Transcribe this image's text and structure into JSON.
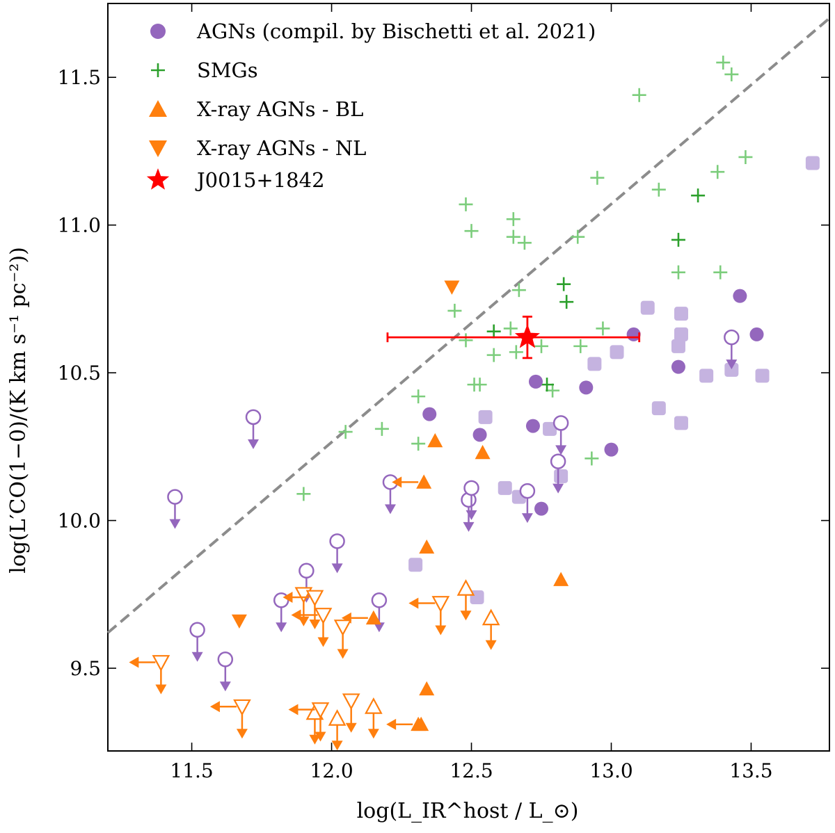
{
  "chart_data": {
    "type": "scatter",
    "xlabel": "log(L_IR^host / L_⊙)",
    "ylabel": "log(L′CO(1−0)/(K km s⁻¹ pc⁻²))",
    "xlim": [
      11.2,
      13.78
    ],
    "ylim": [
      9.22,
      11.75
    ],
    "xticks": [
      11.5,
      12.0,
      12.5,
      13.0,
      13.5
    ],
    "xtick_labels": [
      "11.5",
      "12.0",
      "12.5",
      "13.0",
      "13.5"
    ],
    "yticks": [
      9.5,
      10.0,
      10.5,
      11.0,
      11.5
    ],
    "ytick_labels": [
      "9.5",
      "10.0",
      "10.5",
      "11.0",
      "11.5"
    ],
    "legend_position": "top-left",
    "legend": [
      {
        "label": "AGNs (compil. by Bischetti et al. 2021)",
        "marker": "circle",
        "color": "#9467bd"
      },
      {
        "label": "SMGs",
        "marker": "plus",
        "color": "#2ca02c"
      },
      {
        "label": "X-ray AGNs - BL",
        "marker": "triangle-up",
        "color": "#ff7f0e"
      },
      {
        "label": "X-ray AGNs - NL",
        "marker": "triangle-down",
        "color": "#ff7f0e"
      },
      {
        "label": "J0015+1842",
        "marker": "star",
        "color": "#ff0000"
      }
    ],
    "colors": {
      "agn": "#9467bd",
      "agn_light": "#c5b3e0",
      "smg": "#2ca02c",
      "smg_light": "#7ccd7c",
      "xray": "#ff7f0e",
      "target": "#ff0000",
      "relation": "#8c8c8c"
    },
    "relation_line": {
      "x": [
        11.2,
        13.78
      ],
      "y": [
        9.62,
        11.7
      ],
      "style": "dashed"
    },
    "series": [
      {
        "name": "AGNs (compil. by Bischetti et al. 2021)",
        "marker": "circle",
        "detections": [
          [
            12.35,
            10.36
          ],
          [
            12.53,
            10.29
          ],
          [
            12.72,
            10.32
          ],
          [
            12.73,
            10.47
          ],
          [
            12.75,
            10.04
          ],
          [
            12.91,
            10.45
          ],
          [
            13.0,
            10.24
          ],
          [
            13.08,
            10.63
          ],
          [
            13.24,
            10.52
          ],
          [
            13.46,
            10.76
          ],
          [
            13.52,
            10.63
          ]
        ],
        "upper_limits": [
          [
            11.44,
            10.08
          ],
          [
            11.52,
            9.63
          ],
          [
            11.62,
            9.53
          ],
          [
            11.72,
            10.35
          ],
          [
            11.82,
            9.73
          ],
          [
            11.91,
            9.83
          ],
          [
            12.02,
            9.93
          ],
          [
            12.17,
            9.73
          ],
          [
            12.21,
            10.13
          ],
          [
            12.49,
            10.07
          ],
          [
            12.5,
            10.11
          ],
          [
            12.7,
            10.1
          ],
          [
            12.81,
            10.2
          ],
          [
            12.82,
            10.33
          ],
          [
            13.43,
            10.62
          ]
        ],
        "light_points": [
          [
            12.3,
            9.85
          ],
          [
            12.52,
            9.74
          ],
          [
            12.55,
            10.35
          ],
          [
            12.62,
            10.11
          ],
          [
            12.67,
            10.08
          ],
          [
            12.78,
            10.31
          ],
          [
            12.82,
            10.15
          ],
          [
            12.94,
            10.53
          ],
          [
            13.02,
            10.57
          ],
          [
            13.13,
            10.72
          ],
          [
            13.17,
            10.38
          ],
          [
            13.24,
            10.59
          ],
          [
            13.25,
            10.63
          ],
          [
            13.25,
            10.7
          ],
          [
            13.25,
            10.33
          ],
          [
            13.34,
            10.49
          ],
          [
            13.43,
            10.51
          ],
          [
            13.54,
            10.49
          ],
          [
            13.72,
            11.21
          ]
        ]
      },
      {
        "name": "SMGs",
        "marker": "plus",
        "points": [
          [
            12.58,
            10.64
          ],
          [
            12.77,
            10.46
          ],
          [
            12.83,
            10.8
          ],
          [
            12.84,
            10.74
          ],
          [
            13.24,
            10.95
          ],
          [
            13.31,
            11.1
          ]
        ],
        "light_points": [
          [
            11.9,
            10.09
          ],
          [
            12.05,
            10.3
          ],
          [
            12.18,
            10.31
          ],
          [
            12.31,
            10.42
          ],
          [
            12.31,
            10.26
          ],
          [
            12.44,
            10.71
          ],
          [
            12.48,
            11.07
          ],
          [
            12.48,
            10.61
          ],
          [
            12.5,
            10.98
          ],
          [
            12.51,
            10.46
          ],
          [
            12.53,
            10.46
          ],
          [
            12.58,
            10.56
          ],
          [
            12.64,
            10.65
          ],
          [
            12.65,
            11.02
          ],
          [
            12.65,
            10.96
          ],
          [
            12.66,
            10.57
          ],
          [
            12.67,
            10.78
          ],
          [
            12.69,
            10.94
          ],
          [
            12.75,
            10.59
          ],
          [
            12.79,
            10.44
          ],
          [
            12.88,
            10.96
          ],
          [
            12.89,
            10.59
          ],
          [
            12.93,
            10.21
          ],
          [
            12.95,
            11.16
          ],
          [
            12.97,
            10.65
          ],
          [
            13.1,
            11.44
          ],
          [
            13.17,
            11.12
          ],
          [
            13.24,
            10.84
          ],
          [
            13.38,
            11.18
          ],
          [
            13.39,
            10.84
          ],
          [
            13.4,
            11.55
          ],
          [
            13.43,
            11.51
          ],
          [
            13.48,
            11.23
          ]
        ]
      },
      {
        "name": "X-ray AGNs - BL",
        "marker": "triangle-up",
        "detections": [
          [
            12.32,
            9.31
          ],
          [
            12.34,
            9.43
          ],
          [
            12.34,
            9.91
          ],
          [
            12.37,
            10.27
          ],
          [
            12.54,
            10.23
          ],
          [
            12.82,
            9.8
          ]
        ],
        "upper_limits": [
          [
            11.94,
            9.35
          ],
          [
            12.02,
            9.33
          ],
          [
            12.15,
            9.37
          ],
          [
            12.48,
            9.77
          ],
          [
            12.57,
            9.67
          ]
        ],
        "left_limits": [
          [
            12.33,
            10.13
          ],
          [
            12.31,
            9.31
          ],
          [
            12.15,
            9.67
          ]
        ]
      },
      {
        "name": "X-ray AGNs - NL",
        "marker": "triangle-down",
        "detections": [
          [
            11.67,
            9.66
          ],
          [
            12.43,
            10.79
          ]
        ],
        "upper_limits": [
          [
            11.9,
            9.75
          ],
          [
            12.04,
            9.64
          ],
          [
            12.07,
            9.39
          ]
        ],
        "upper_left_limits": [
          [
            11.39,
            9.52
          ],
          [
            11.68,
            9.37
          ],
          [
            11.94,
            9.74
          ],
          [
            11.97,
            9.68
          ],
          [
            11.96,
            9.36
          ],
          [
            12.39,
            9.72
          ]
        ]
      },
      {
        "name": "J0015+1842",
        "marker": "star",
        "points": [
          [
            12.7,
            10.62
          ]
        ],
        "xerr": [
          0.5,
          0.4
        ],
        "yerr": [
          0.07,
          0.07
        ]
      }
    ]
  }
}
